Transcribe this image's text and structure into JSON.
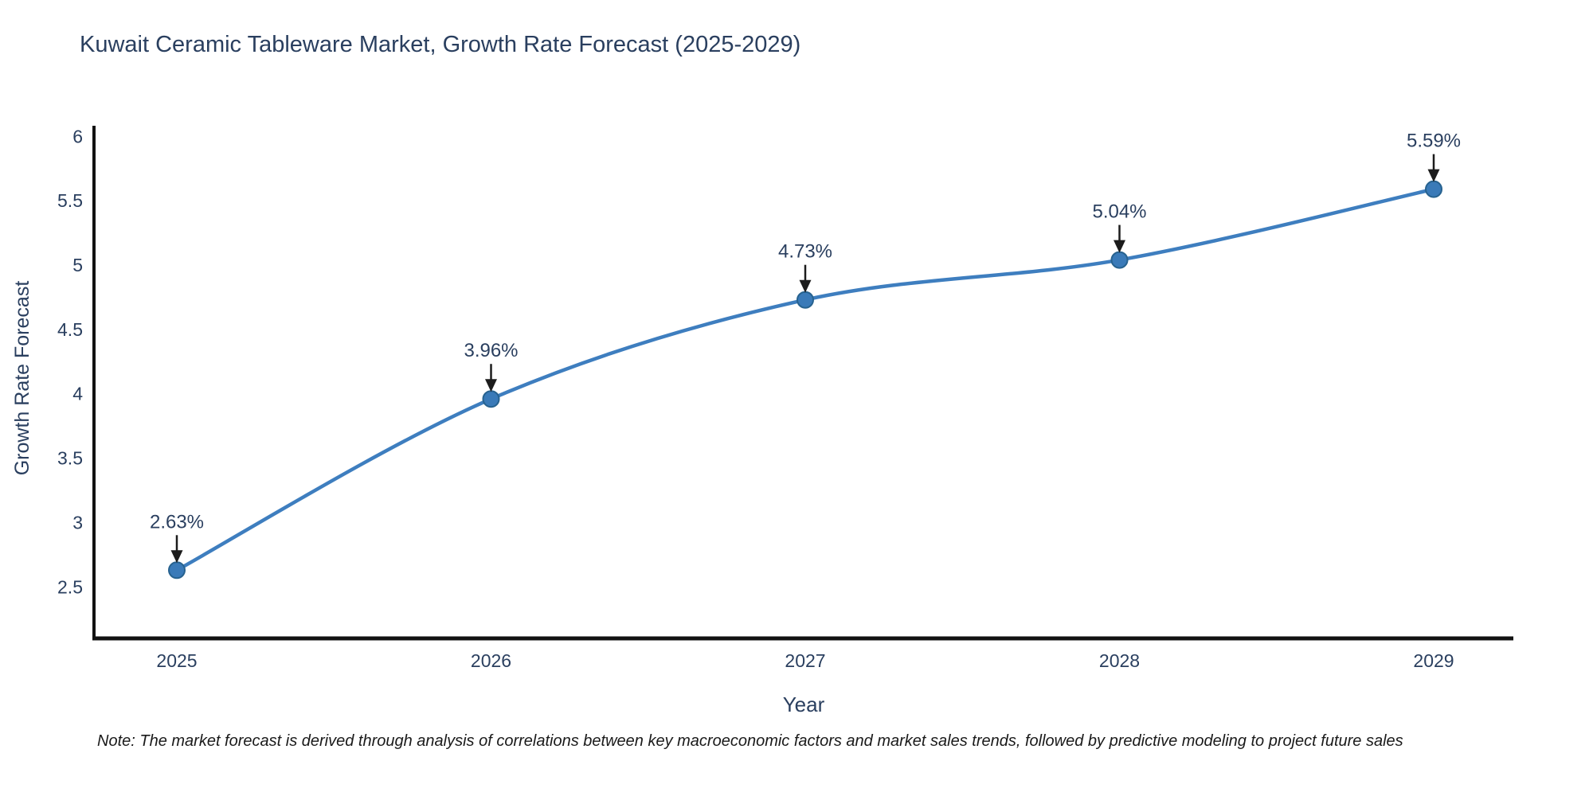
{
  "title": "Kuwait Ceramic Tableware Market, Growth Rate Forecast (2025-2029)",
  "note": "Note: The market forecast is derived through analysis of correlations between key macroeconomic factors and market sales trends, followed by predictive modeling to project future sales",
  "chart_data": {
    "type": "line",
    "title": "Kuwait Ceramic Tableware Market, Growth Rate Forecast (2025-2029)",
    "xlabel": "Year",
    "ylabel": "Growth Rate Forecast",
    "x": [
      2025,
      2026,
      2027,
      2028,
      2029
    ],
    "values": [
      2.63,
      3.96,
      4.73,
      5.04,
      5.59
    ],
    "point_labels": [
      "2.63%",
      "3.96%",
      "4.73%",
      "5.04%",
      "5.59%"
    ],
    "yticks": [
      2.5,
      3,
      3.5,
      4,
      4.5,
      5,
      5.5,
      6
    ],
    "ylim": [
      2.1,
      6.07
    ],
    "grid": false,
    "legend_position": "none",
    "smooth": true,
    "colors": {
      "line": "#3e7ebf",
      "marker_fill": "#3a7ab8",
      "marker_edge": "#27628f",
      "axis_line": "#121212",
      "tick_label": "#2a3f5f",
      "annotation_text": "#2a3f5f",
      "annotation_arrow": "#1c1c1c",
      "title": "#2a3f5f"
    }
  }
}
